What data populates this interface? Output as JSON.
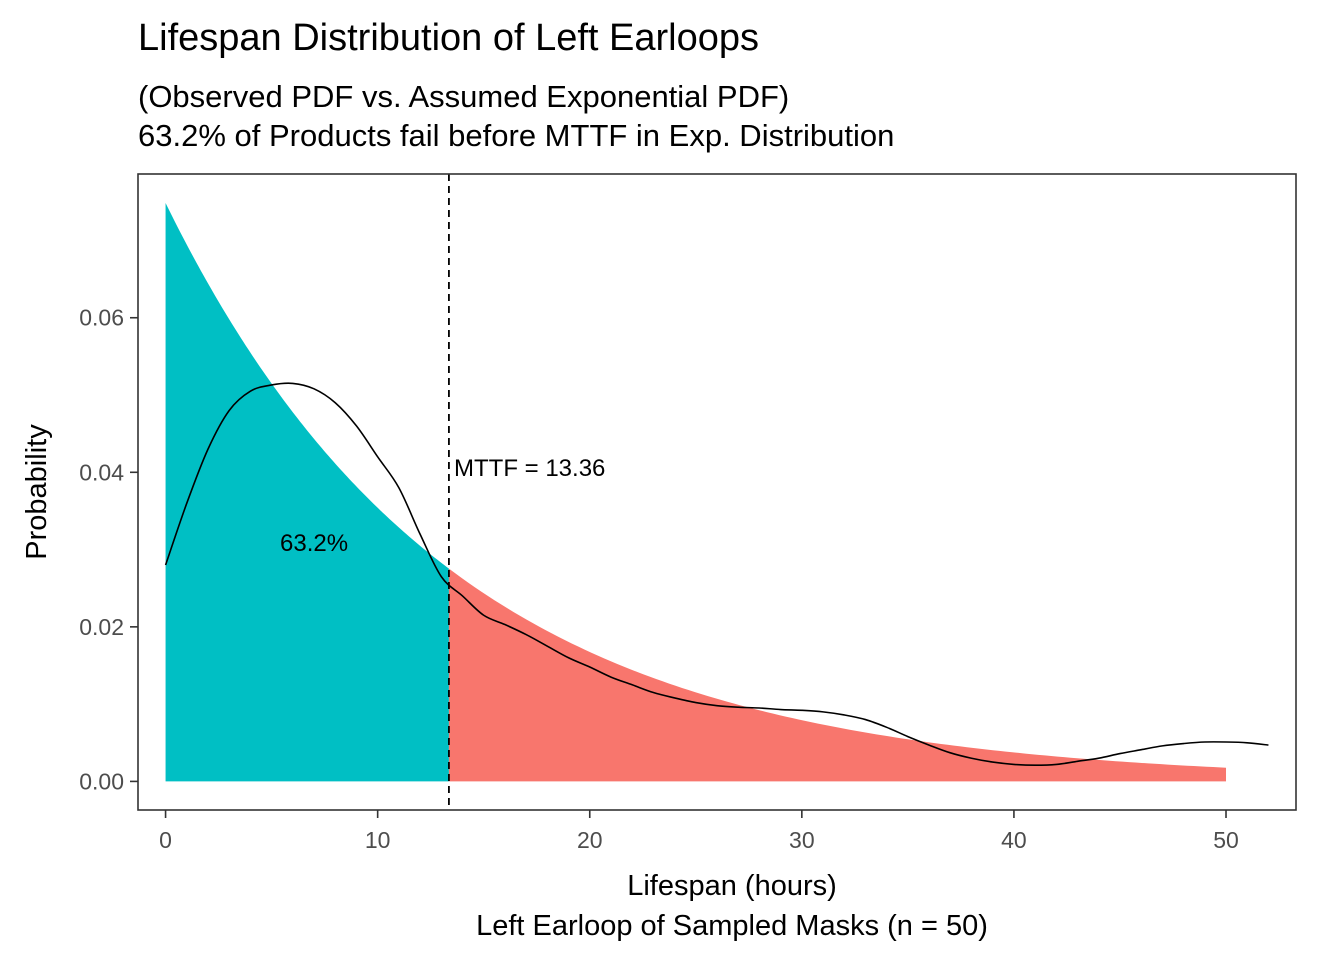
{
  "chart_data": {
    "type": "area",
    "title": "Lifespan Distribution of Left Earloops",
    "subtitle_lines": [
      "(Observed PDF vs. Assumed Exponential PDF)",
      "63.2% of Products fail before MTTF in Exp. Distribution"
    ],
    "xlabel_lines": [
      "Lifespan (hours)",
      "Left Earloop of Sampled Masks (n = 50)"
    ],
    "ylabel": "Probability",
    "xlim": [
      -1.3,
      53.3
    ],
    "ylim": [
      -0.0037,
      0.0786
    ],
    "xticks": [
      0,
      10,
      20,
      30,
      40,
      50
    ],
    "xtick_labels": [
      "0",
      "10",
      "20",
      "30",
      "40",
      "50"
    ],
    "yticks": [
      0.0,
      0.02,
      0.04,
      0.06
    ],
    "ytick_labels": [
      "0.00",
      "0.02",
      "0.04",
      "0.06"
    ],
    "grid": false,
    "exponential_pdf": {
      "mttf": 13.36,
      "x_range": [
        0,
        50
      ],
      "fill_before_mttf": "#00BFC4",
      "fill_after_mttf": "#F8766D"
    },
    "observed_density": {
      "color": "#000000",
      "x": [
        0,
        1,
        2,
        3,
        4,
        5,
        6,
        7,
        8,
        9,
        10,
        11,
        12,
        13,
        14,
        15,
        16,
        17,
        18,
        19,
        20,
        21,
        22,
        23,
        24,
        25,
        26,
        27,
        28,
        29,
        30,
        31,
        32,
        33,
        34,
        35,
        36,
        37,
        38,
        39,
        40,
        41,
        42,
        43,
        44,
        45,
        46,
        47,
        48,
        49,
        50,
        51,
        52
      ],
      "y": [
        0.028,
        0.036,
        0.043,
        0.048,
        0.0505,
        0.0513,
        0.0515,
        0.0508,
        0.049,
        0.046,
        0.042,
        0.038,
        0.032,
        0.0265,
        0.024,
        0.0215,
        0.0203,
        0.019,
        0.0175,
        0.016,
        0.0148,
        0.0135,
        0.0125,
        0.0115,
        0.0108,
        0.0102,
        0.0098,
        0.0096,
        0.0095,
        0.0093,
        0.0092,
        0.009,
        0.0086,
        0.008,
        0.007,
        0.0058,
        0.0047,
        0.0037,
        0.003,
        0.0025,
        0.0022,
        0.0021,
        0.0022,
        0.0026,
        0.003,
        0.0036,
        0.0041,
        0.0046,
        0.0049,
        0.0051,
        0.0051,
        0.005,
        0.0047
      ]
    },
    "annotations": [
      {
        "text": "MTTF = 13.36",
        "x": 13.6,
        "y": 0.0395,
        "anchor": "start"
      },
      {
        "text": "63.2%",
        "x": 7,
        "y": 0.0298,
        "anchor": "middle"
      }
    ],
    "mttf_line": {
      "x": 13.36,
      "style": "dashed"
    }
  }
}
